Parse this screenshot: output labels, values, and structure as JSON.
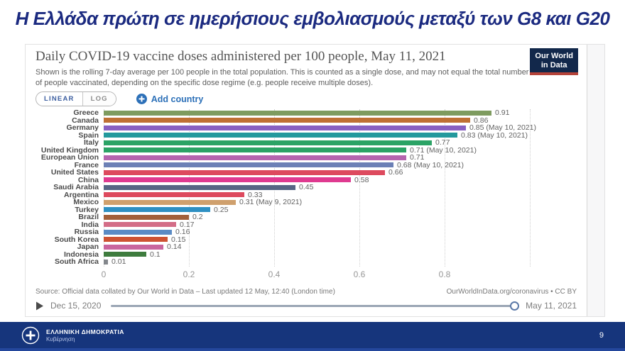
{
  "slide": {
    "title": "Η Ελλάδα πρώτη σε ημερήσιους εμβολιασμούς μεταξύ των G8 και G20",
    "page_number": "9",
    "footer": {
      "org_name": "ΕΛΛΗΝΙΚΗ ΔΗΜΟΚΡΑΤΙΑ",
      "org_sub": "Κυβέρνηση"
    }
  },
  "chart": {
    "title": "Daily COVID-19 vaccine doses administered per 100 people, May 11, 2021",
    "subtitle": "Shown is the rolling 7-day average per 100 people in the total population. This is counted as a single dose, and may not equal the total number of people vaccinated, depending on the specific dose regime (e.g. people receive multiple doses).",
    "logo_line1": "Our World",
    "logo_line2": "in Data",
    "controls": {
      "linear_label": "LINEAR",
      "log_label": "LOG",
      "add_country_label": "Add country"
    },
    "source_left": "Source: Official data collated by Our World in Data – Last updated 12 May, 12:40 (London time)",
    "source_right": "OurWorldInData.org/coronavirus • CC BY",
    "timeline_start": "Dec 15, 2020",
    "timeline_end": "May 11, 2021"
  },
  "chart_data": {
    "type": "bar",
    "orientation": "horizontal",
    "title": "Daily COVID-19 vaccine doses administered per 100 people, May 11, 2021",
    "xlabel": "",
    "ylabel": "",
    "xlim": [
      0,
      1.0
    ],
    "grid": true,
    "x_tick_labels": [
      "0",
      "0.2",
      "0.4",
      "0.6",
      "0.8"
    ],
    "x_tick_values": [
      0,
      0.2,
      0.4,
      0.6,
      0.8
    ],
    "grid_tick_values": [
      0,
      0.2,
      0.4,
      0.6,
      0.8,
      1.0
    ],
    "categories": [
      "Greece",
      "Canada",
      "Germany",
      "Spain",
      "Italy",
      "United Kingdom",
      "European Union",
      "France",
      "United States",
      "China",
      "Saudi Arabia",
      "Argentina",
      "Mexico",
      "Turkey",
      "Brazil",
      "India",
      "Russia",
      "South Korea",
      "Japan",
      "Indonesia",
      "South Africa"
    ],
    "values": [
      0.91,
      0.86,
      0.85,
      0.83,
      0.77,
      0.71,
      0.71,
      0.68,
      0.66,
      0.58,
      0.45,
      0.33,
      0.31,
      0.25,
      0.2,
      0.17,
      0.16,
      0.15,
      0.14,
      0.1,
      0.01
    ],
    "value_labels": [
      "0.91",
      "0.86",
      "0.85 (May 10, 2021)",
      "0.83 (May 10, 2021)",
      "0.77",
      "0.71 (May 10, 2021)",
      "0.71",
      "0.68 (May 10, 2021)",
      "0.66",
      "0.58",
      "0.45",
      "0.33",
      "0.31 (May 9, 2021)",
      "0.25",
      "0.2",
      "0.17",
      "0.16",
      "0.15",
      "0.14",
      "0.1",
      "0.01"
    ],
    "bar_colors": [
      "#7e9b5f",
      "#bf7034",
      "#8860c2",
      "#23999d",
      "#2ba365",
      "#2ba365",
      "#b565ae",
      "#6c80b6",
      "#dd4a5e",
      "#df3a90",
      "#566584",
      "#dd4a5e",
      "#cfa06d",
      "#2e90c3",
      "#a2603a",
      "#d36d87",
      "#5b8bc4",
      "#ce5232",
      "#c9659e",
      "#3e7c3e",
      "#83878c"
    ]
  }
}
